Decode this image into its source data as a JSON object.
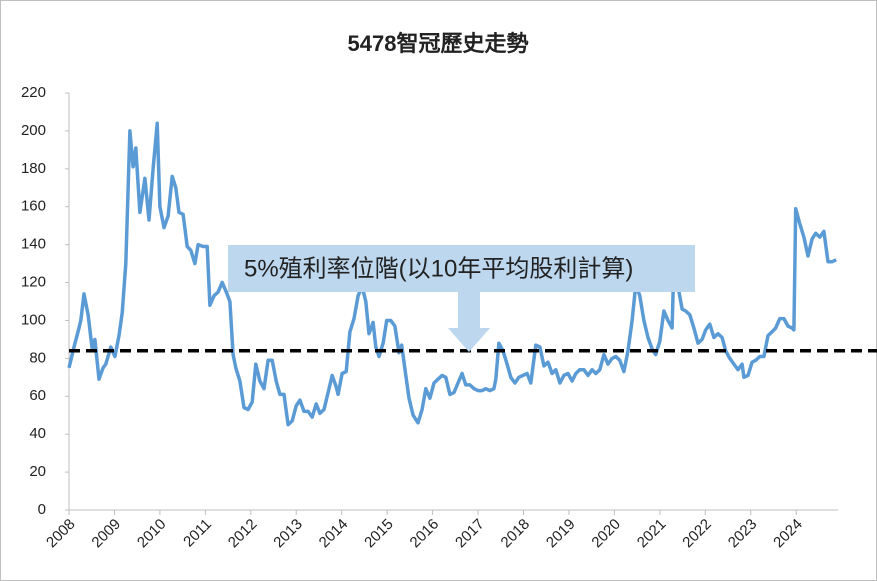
{
  "chart_data": {
    "type": "line",
    "title": "5478智冠歷史走勢",
    "annotation": "5%殖利率位階(以10年平均股利計算)",
    "reference_line": 84,
    "xlim": [
      2008,
      2024.92
    ],
    "xticks": [
      2008,
      2009,
      2010,
      2011,
      2012,
      2013,
      2014,
      2015,
      2016,
      2017,
      2018,
      2019,
      2020,
      2021,
      2022,
      2023,
      2024
    ],
    "ylim": [
      0,
      220
    ],
    "yticks": [
      0,
      20,
      40,
      60,
      80,
      100,
      120,
      140,
      160,
      180,
      200,
      220
    ],
    "x": [
      2008.0,
      2008.11,
      2008.22,
      2008.26,
      2008.33,
      2008.42,
      2008.51,
      2008.57,
      2008.66,
      2008.75,
      2008.81,
      2008.92,
      2009.01,
      2009.1,
      2009.17,
      2009.25,
      2009.34,
      2009.41,
      2009.47,
      2009.56,
      2009.67,
      2009.76,
      2009.85,
      2009.94,
      2010.0,
      2010.09,
      2010.18,
      2010.27,
      2010.35,
      2010.42,
      2010.51,
      2010.6,
      2010.68,
      2010.77,
      2010.84,
      2010.95,
      2011.04,
      2011.1,
      2011.19,
      2011.28,
      2011.37,
      2011.46,
      2011.54,
      2011.61,
      2011.67,
      2011.76,
      2011.85,
      2011.94,
      2012.03,
      2012.11,
      2012.2,
      2012.29,
      2012.38,
      2012.47,
      2012.56,
      2012.64,
      2012.73,
      2012.82,
      2012.91,
      2013.0,
      2013.08,
      2013.17,
      2013.26,
      2013.35,
      2013.44,
      2013.52,
      2013.61,
      2013.7,
      2013.79,
      2013.88,
      2013.92,
      2014.01,
      2014.1,
      2014.18,
      2014.27,
      2014.36,
      2014.45,
      2014.53,
      2014.6,
      2014.69,
      2014.75,
      2014.82,
      2014.91,
      2014.99,
      2015.08,
      2015.17,
      2015.26,
      2015.32,
      2015.41,
      2015.48,
      2015.57,
      2015.68,
      2015.77,
      2015.85,
      2015.94,
      2016.03,
      2016.12,
      2016.21,
      2016.29,
      2016.38,
      2016.47,
      2016.56,
      2016.65,
      2016.73,
      2016.82,
      2016.91,
      2017.0,
      2017.09,
      2017.17,
      2017.26,
      2017.35,
      2017.39,
      2017.46,
      2017.55,
      2017.64,
      2017.72,
      2017.81,
      2017.9,
      2017.99,
      2018.08,
      2018.16,
      2018.27,
      2018.36,
      2018.45,
      2018.54,
      2018.63,
      2018.71,
      2018.8,
      2018.89,
      2018.98,
      2019.07,
      2019.15,
      2019.24,
      2019.33,
      2019.42,
      2019.51,
      2019.59,
      2019.68,
      2019.77,
      2019.86,
      2019.95,
      2020.03,
      2020.12,
      2020.21,
      2020.3,
      2020.39,
      2020.47,
      2020.56,
      2020.65,
      2020.74,
      2020.83,
      2020.91,
      2021.0,
      2021.09,
      2021.18,
      2021.27,
      2021.31,
      2021.4,
      2021.49,
      2021.57,
      2021.66,
      2021.75,
      2021.84,
      2021.93,
      2022.01,
      2022.1,
      2022.19,
      2022.28,
      2022.37,
      2022.45,
      2022.54,
      2022.63,
      2022.72,
      2022.81,
      2022.85,
      2022.94,
      2023.03,
      2023.11,
      2023.2,
      2023.29,
      2023.38,
      2023.47,
      2023.55,
      2023.64,
      2023.73,
      2023.82,
      2023.91,
      2023.95,
      2023.99,
      2024.08,
      2024.17,
      2024.26,
      2024.35,
      2024.43,
      2024.52,
      2024.61,
      2024.7,
      2024.79,
      2024.88
    ],
    "series": [
      {
        "color": "#5b9bd5",
        "values": [
          75,
          86,
          96,
          100,
          114,
          103,
          85,
          90,
          69,
          75,
          77,
          86,
          81,
          92,
          104,
          130,
          200,
          181,
          191,
          157,
          175,
          153,
          180,
          204,
          160,
          149,
          155,
          176,
          170,
          157,
          156,
          139,
          137,
          130,
          140,
          139,
          139,
          108,
          113,
          115,
          120,
          115,
          110,
          82,
          75,
          68,
          54,
          53,
          57,
          77,
          68,
          64,
          79,
          79,
          68,
          61,
          61,
          45,
          47,
          55,
          58,
          52,
          52,
          49,
          56,
          51,
          53,
          62,
          71,
          65,
          61,
          72,
          73,
          94,
          101,
          113,
          118,
          110,
          93,
          99,
          86,
          81,
          88,
          100,
          100,
          97,
          83,
          87,
          71,
          59,
          50,
          46,
          53,
          64,
          59,
          67,
          69,
          71,
          70,
          61,
          62,
          67,
          72,
          66,
          66,
          64,
          63,
          63,
          64,
          63,
          64,
          69,
          88,
          84,
          77,
          70,
          67,
          70,
          71,
          72,
          67,
          87,
          86,
          76,
          78,
          72,
          74,
          67,
          71,
          72,
          68,
          72,
          74,
          74,
          71,
          74,
          72,
          74,
          82,
          77,
          80,
          81,
          79,
          73,
          84,
          100,
          119,
          113,
          100,
          91,
          85,
          82,
          89,
          105,
          100,
          96,
          130,
          118,
          106,
          105,
          103,
          96,
          88,
          90,
          95,
          98,
          91,
          93,
          91,
          84,
          80,
          77,
          74,
          77,
          70,
          71,
          78,
          79,
          81,
          81,
          92,
          94,
          96,
          101,
          101,
          97,
          96,
          95,
          159,
          151,
          144,
          134,
          143,
          146,
          144,
          147,
          131,
          131,
          132
        ]
      }
    ]
  }
}
